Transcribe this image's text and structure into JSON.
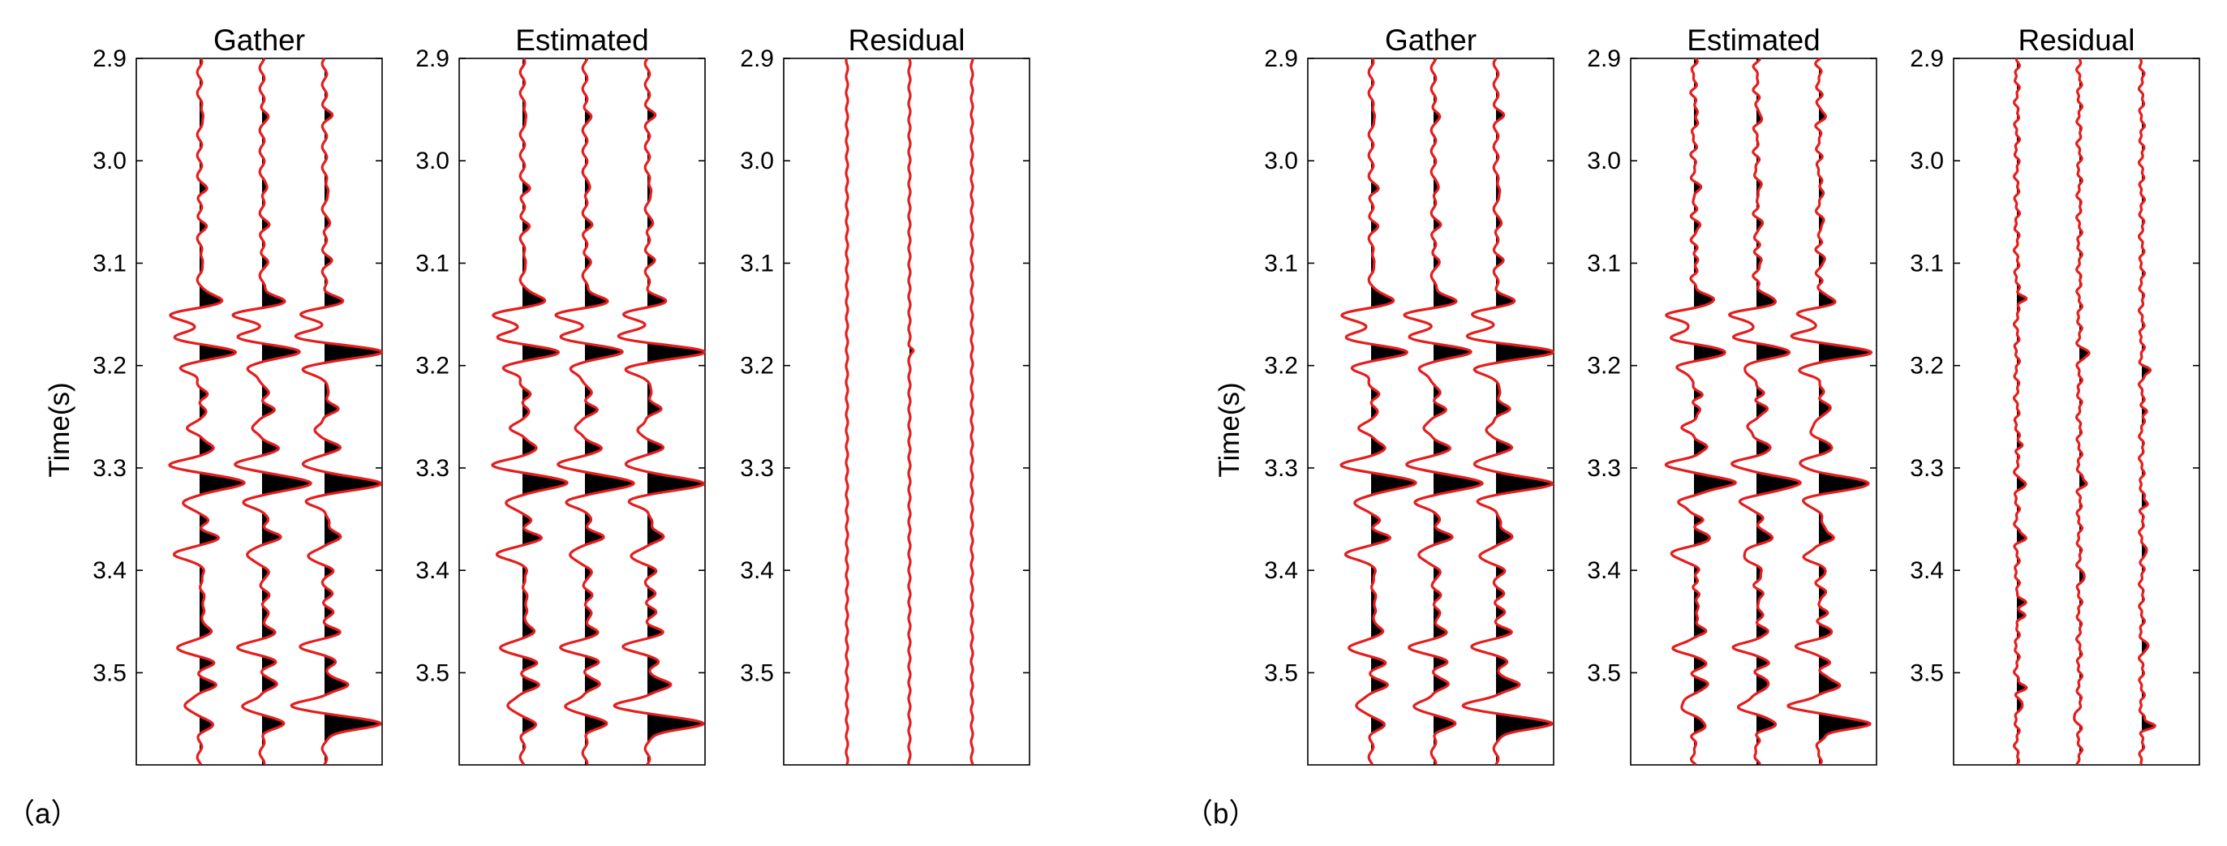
{
  "colors": {
    "trace": "#e41e1e",
    "fill": "#000000",
    "axes": "#000000",
    "background": "#ffffff"
  },
  "chart_data": [
    {
      "type": "seismic-wiggle",
      "panel_label": "（a）",
      "ylabel": "Time(s)",
      "ylim": [
        2.9,
        3.59
      ],
      "yticks": [
        "2.9",
        "3.0",
        "3.1",
        "3.2",
        "3.3",
        "3.4",
        "3.5"
      ],
      "subplots": [
        {
          "title": "Gather",
          "kind": "data",
          "traces": 3
        },
        {
          "title": "Estimated",
          "kind": "estimated",
          "traces": 3
        },
        {
          "title": "Residual",
          "kind": "residual",
          "traces": 3
        }
      ]
    },
    {
      "type": "seismic-wiggle",
      "panel_label": "（b）",
      "ylabel": "Time(s)",
      "ylim": [
        2.9,
        3.59
      ],
      "yticks": [
        "2.9",
        "3.0",
        "3.1",
        "3.2",
        "3.3",
        "3.4",
        "3.5"
      ],
      "subplots": [
        {
          "title": "Gather",
          "kind": "data",
          "traces": 3
        },
        {
          "title": "Estimated",
          "kind": "estimated",
          "traces": 3
        },
        {
          "title": "Residual",
          "kind": "residual",
          "traces": 3
        }
      ]
    }
  ],
  "events": [
    {
      "t": 2.955,
      "a": [
        0.1,
        0.1,
        0.1
      ],
      "w": 0.0055
    },
    {
      "t": 3.028,
      "a": [
        0.1,
        0.1,
        0.1
      ],
      "w": 0.0055
    },
    {
      "t": 3.063,
      "a": [
        0.09,
        0.09,
        0.09
      ],
      "w": 0.0055
    },
    {
      "t": 3.097,
      "a": [
        0.09,
        0.09,
        0.09
      ],
      "w": 0.0055
    },
    {
      "t": 3.137,
      "a": [
        0.45,
        0.42,
        0.3
      ],
      "w": 0.0075
    },
    {
      "t": 3.15,
      "a": [
        -0.55,
        -0.5,
        -0.4
      ],
      "w": 0.007
    },
    {
      "t": 3.172,
      "a": [
        -0.45,
        -0.4,
        -0.5
      ],
      "w": 0.007
    },
    {
      "t": 3.187,
      "a": [
        0.6,
        0.65,
        1.05
      ],
      "w": 0.0075
    },
    {
      "t": 3.203,
      "a": [
        -0.35,
        -0.3,
        -0.4
      ],
      "w": 0.0065
    },
    {
      "t": 3.228,
      "a": [
        0.1,
        0.1,
        0.1
      ],
      "w": 0.0055
    },
    {
      "t": 3.243,
      "a": [
        0.1,
        0.18,
        0.22
      ],
      "w": 0.006
    },
    {
      "t": 3.262,
      "a": [
        -0.2,
        -0.2,
        -0.2
      ],
      "w": 0.006
    },
    {
      "t": 3.28,
      "a": [
        0.28,
        0.28,
        0.24
      ],
      "w": 0.0065
    },
    {
      "t": 3.297,
      "a": [
        -0.5,
        -0.45,
        -0.4
      ],
      "w": 0.007
    },
    {
      "t": 3.315,
      "a": [
        0.8,
        0.9,
        1.0
      ],
      "w": 0.008
    },
    {
      "t": 3.333,
      "a": [
        -0.3,
        -0.3,
        -0.3
      ],
      "w": 0.007
    },
    {
      "t": 3.352,
      "a": [
        0.12,
        0.12,
        0.12
      ],
      "w": 0.0055
    },
    {
      "t": 3.368,
      "a": [
        0.3,
        0.3,
        0.3
      ],
      "w": 0.0065
    },
    {
      "t": 3.385,
      "a": [
        -0.45,
        -0.3,
        -0.3
      ],
      "w": 0.007
    },
    {
      "t": 3.4,
      "a": [
        0.12,
        0.12,
        0.12
      ],
      "w": 0.0055
    },
    {
      "t": 3.423,
      "a": [
        0.1,
        0.1,
        0.1
      ],
      "w": 0.0055
    },
    {
      "t": 3.44,
      "a": [
        0.12,
        0.12,
        0.12
      ],
      "w": 0.0055
    },
    {
      "t": 3.46,
      "a": [
        0.25,
        0.25,
        0.25
      ],
      "w": 0.006
    },
    {
      "t": 3.475,
      "a": [
        -0.4,
        -0.4,
        -0.4
      ],
      "w": 0.007
    },
    {
      "t": 3.49,
      "a": [
        0.22,
        0.22,
        0.22
      ],
      "w": 0.006
    },
    {
      "t": 3.512,
      "a": [
        0.25,
        0.25,
        0.45
      ],
      "w": 0.0065
    },
    {
      "t": 3.532,
      "a": [
        -0.3,
        -0.35,
        -0.55
      ],
      "w": 0.007
    },
    {
      "t": 3.55,
      "a": [
        0.2,
        0.35,
        1.0
      ],
      "w": 0.0075
    }
  ]
}
